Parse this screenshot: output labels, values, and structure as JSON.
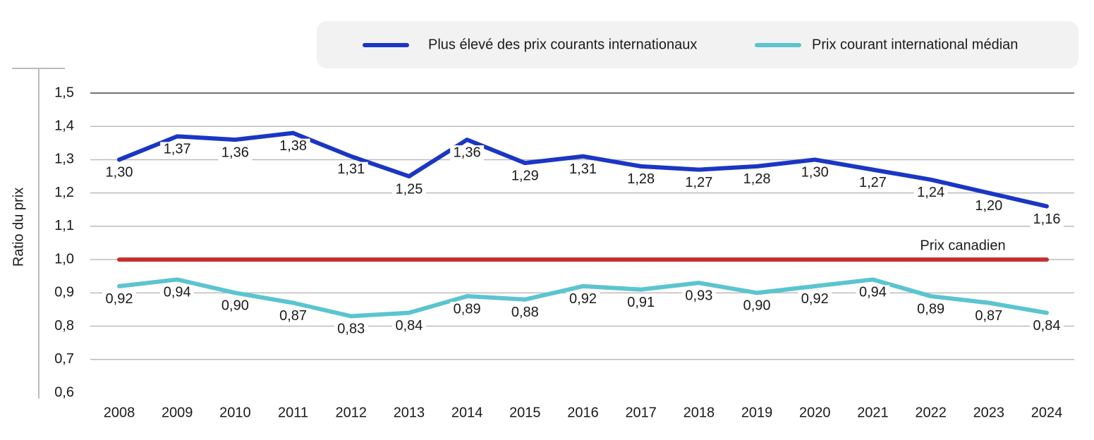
{
  "chart_data": {
    "type": "line",
    "y_label": "Ratio du prix",
    "categories": [
      "2008",
      "2009",
      "2010",
      "2011",
      "2012",
      "2013",
      "2014",
      "2015",
      "2016",
      "2017",
      "2018",
      "2019",
      "2020",
      "2021",
      "2022",
      "2023",
      "2024"
    ],
    "series": [
      {
        "name": "Plus élevé des prix courants internationaux",
        "color": "#1a36c4",
        "values": [
          1.3,
          1.37,
          1.36,
          1.38,
          1.31,
          1.25,
          1.36,
          1.29,
          1.31,
          1.28,
          1.27,
          1.28,
          1.3,
          1.27,
          1.24,
          1.2,
          1.16
        ],
        "value_labels": [
          "1,30",
          "1,37",
          "1,36",
          "1,38",
          "1,31",
          "1,25",
          "1,36",
          "1,29",
          "1,31",
          "1,28",
          "1,27",
          "1,28",
          "1,30",
          "1,27",
          "1,24",
          "1,20",
          "1,16"
        ]
      },
      {
        "name": "Prix courant international médian",
        "color": "#5bc4d0",
        "values": [
          0.92,
          0.94,
          0.9,
          0.87,
          0.83,
          0.84,
          0.89,
          0.88,
          0.92,
          0.91,
          0.93,
          0.9,
          0.92,
          0.94,
          0.89,
          0.87,
          0.84
        ],
        "value_labels": [
          "0,92",
          "0,94",
          "0,90",
          "0,87",
          "0,83",
          "0,84",
          "0,89",
          "0,88",
          "0,92",
          "0,91",
          "0,93",
          "0,90",
          "0,92",
          "0,94",
          "0,89",
          "0,87",
          "0,84"
        ]
      }
    ],
    "reference_line": {
      "label": "Prix canadien",
      "value": 1,
      "color": "#c4302f"
    },
    "ylim": [
      0.6,
      1.5
    ],
    "yticks": [
      {
        "value": 0.6,
        "label": "0,6"
      },
      {
        "value": 0.7,
        "label": "0,7"
      },
      {
        "value": 0.8,
        "label": "0,8"
      },
      {
        "value": 0.9,
        "label": "0,9"
      },
      {
        "value": 1,
        "label": "1,0"
      },
      {
        "value": 1.1,
        "label": "1,1"
      },
      {
        "value": 1.2,
        "label": "1,2"
      },
      {
        "value": 1.3,
        "label": "1,3"
      },
      {
        "value": 1.4,
        "label": "1,4"
      },
      {
        "value": 1.5,
        "label": "1,5"
      }
    ],
    "grid": true,
    "legend": "top"
  }
}
